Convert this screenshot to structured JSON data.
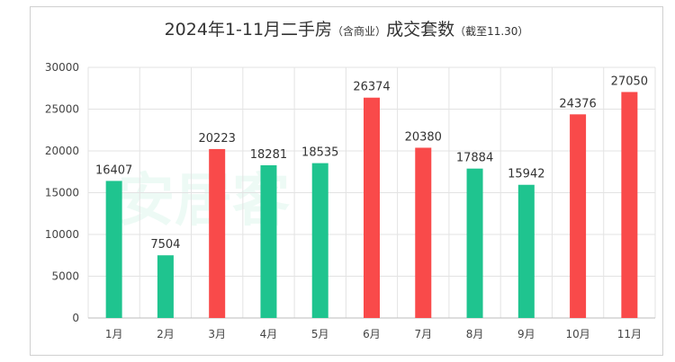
{
  "chart_data": {
    "type": "bar",
    "title_main": "2024年1-11月二手房",
    "title_sub1": "（含商业）",
    "title_mid": "成交套数",
    "title_sub2": "（截至11.30）",
    "categories": [
      "1月",
      "2月",
      "3月",
      "4月",
      "5月",
      "6月",
      "7月",
      "8月",
      "9月",
      "10月",
      "11月"
    ],
    "values": [
      16407,
      7504,
      20223,
      18281,
      18535,
      26374,
      20380,
      17884,
      15942,
      24376,
      27050
    ],
    "colors": [
      "#1fc48f",
      "#1fc48f",
      "#f94a4a",
      "#1fc48f",
      "#1fc48f",
      "#f94a4a",
      "#f94a4a",
      "#1fc48f",
      "#1fc48f",
      "#f94a4a",
      "#f94a4a"
    ],
    "ylim": [
      0,
      30000
    ],
    "yticks": [
      0,
      5000,
      10000,
      15000,
      20000,
      25000,
      30000
    ],
    "grid": true,
    "watermark": "安居客"
  }
}
